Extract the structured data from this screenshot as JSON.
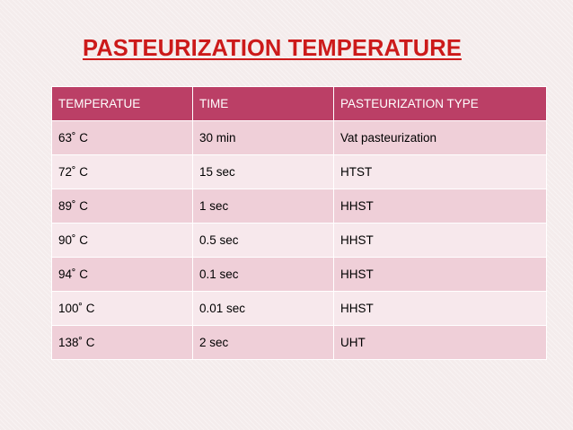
{
  "title": "PASTEURIZATION TEMPERATURE",
  "table": {
    "headers": [
      "TEMPERATUE",
      "TIME",
      "PASTEURIZATION TYPE"
    ],
    "rows": [
      [
        "63˚ C",
        "30 min",
        "Vat pasteurization"
      ],
      [
        "72˚ C",
        "15 sec",
        "HTST"
      ],
      [
        "89˚ C",
        "1 sec",
        "HHST"
      ],
      [
        "90˚ C",
        "0.5 sec",
        "HHST"
      ],
      [
        "94˚ C",
        "0.1 sec",
        "HHST"
      ],
      [
        "100˚ C",
        "0.01 sec",
        "HHST"
      ],
      [
        "138˚ C",
        "2 sec",
        "UHT"
      ]
    ]
  },
  "colors": {
    "title": "#cc1a1a",
    "header_bg": "#bb3f66",
    "row_dark": "#efcfd8",
    "row_light": "#f7e8ec"
  }
}
